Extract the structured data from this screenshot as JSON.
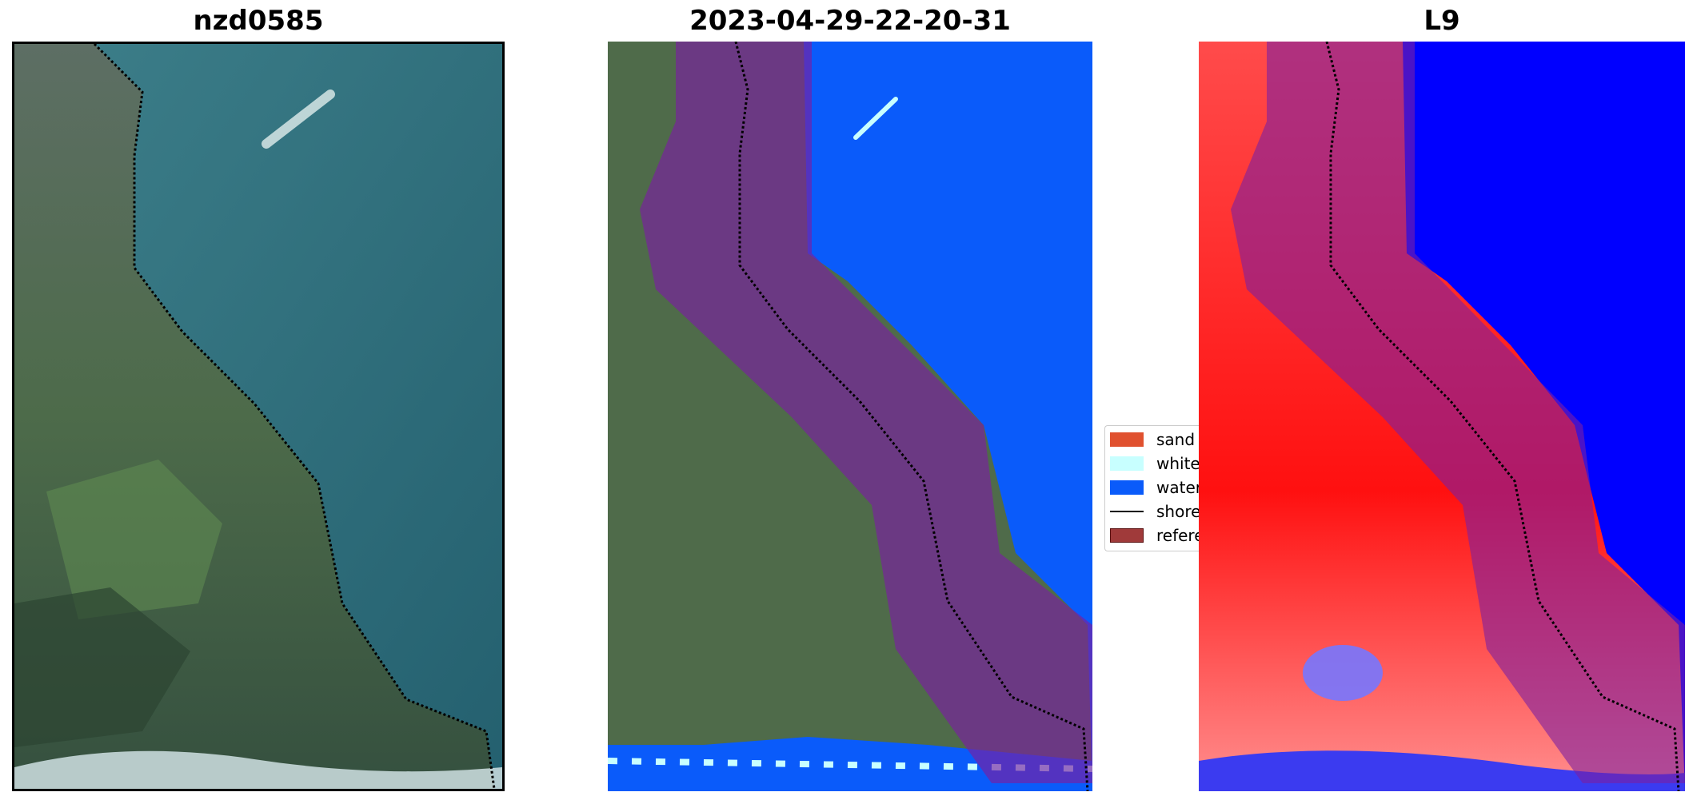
{
  "panels": [
    {
      "title": "nzd0585"
    },
    {
      "title": "2023-04-29-22-20-31"
    },
    {
      "title": "L9"
    }
  ],
  "legend": {
    "items": [
      {
        "label": "sand",
        "color": "#e0512f",
        "icon": "patch"
      },
      {
        "label": "white-water",
        "color": "#c8ffff",
        "icon": "patch"
      },
      {
        "label": "water",
        "color": "#0a5bfa",
        "icon": "patch"
      },
      {
        "label": "shoreline",
        "color": "#000000",
        "icon": "line"
      },
      {
        "label": "reference shoreline buffer",
        "color": "#a03a3a",
        "icon": "patch"
      }
    ]
  },
  "colors": {
    "ocean": "#2f6f7d",
    "land": "#4f6b4a",
    "classified_water": "#0a5bfa",
    "buffer_overlay": "#7b1fa2",
    "index_high": "#ff0000",
    "index_low": "#0000ff"
  }
}
